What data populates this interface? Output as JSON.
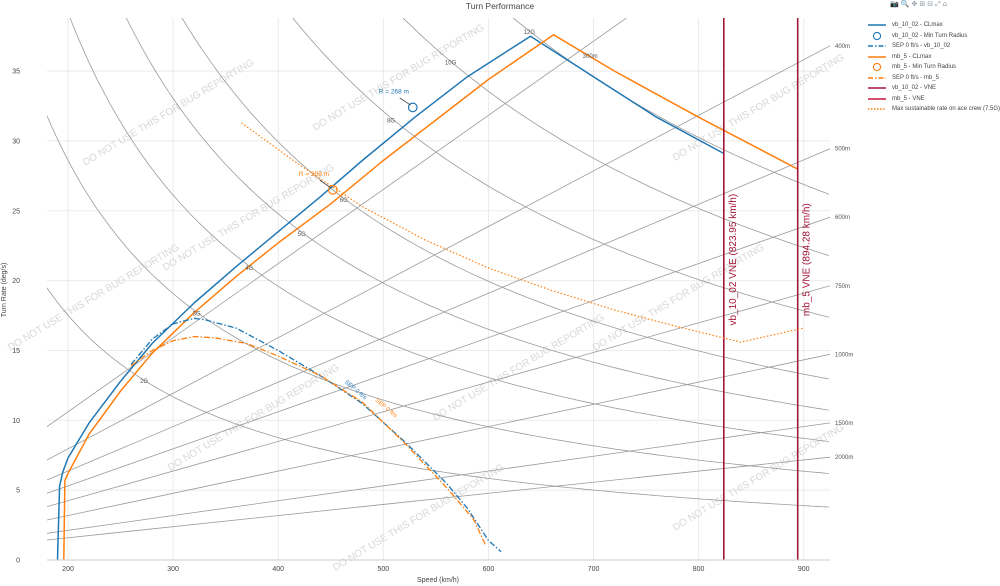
{
  "chart_data": {
    "type": "line",
    "title": "Turn Performance",
    "xlabel": "Speed (km/h)",
    "ylabel": "Turn Rate (deg/s)",
    "xlim": [
      180,
      925
    ],
    "ylim": [
      0,
      38.8
    ],
    "x_ticks": [
      200,
      300,
      400,
      500,
      600,
      700,
      800,
      900
    ],
    "y_ticks": [
      0,
      5,
      10,
      15,
      20,
      25,
      30,
      35
    ],
    "grid": true,
    "legend_position": "right",
    "watermark": "DO NOT USE THIS FOR BUG REPORTING",
    "colors": {
      "vb": "#1f77b4",
      "mb": "#ff7f0e",
      "vne": "#a4163a",
      "aux": "#9a9a9a"
    },
    "g_labels": [
      "2G",
      "3G",
      "4G",
      "5G",
      "6G",
      "8G",
      "10G",
      "12G"
    ],
    "radius_labels": [
      "300m",
      "400m",
      "500m",
      "600m",
      "750m",
      "1000m",
      "1500m",
      "2000m"
    ],
    "series": [
      {
        "name": "vb_10_02 - CLmax",
        "x": [
          190,
          192,
          195,
          200,
          220,
          250,
          280,
          320,
          360,
          400,
          440,
          480,
          530,
          580,
          640,
          700,
          760,
          824
        ],
        "y": [
          0,
          5.3,
          6.3,
          7.3,
          9.8,
          12.8,
          15.5,
          18.4,
          21.0,
          23.5,
          26.0,
          28.6,
          31.7,
          34.6,
          37.5,
          34.6,
          31.7,
          29.1
        ]
      },
      {
        "name": "mb_5 - CLmax",
        "x": [
          196,
          197,
          200,
          220,
          250,
          280,
          320,
          360,
          400,
          450,
          500,
          550,
          600,
          662,
          720,
          800,
          894
        ],
        "y": [
          0,
          5.7,
          6.2,
          9.0,
          12.1,
          14.8,
          17.7,
          20.3,
          22.7,
          25.5,
          28.6,
          31.5,
          34.4,
          37.6,
          35.0,
          31.7,
          28.0
        ]
      },
      {
        "name": "vb_10_02 - Min Turn Radius",
        "x": [
          528
        ],
        "y": [
          32.4
        ]
      },
      {
        "name": "mb_5 - Min Turn Radius",
        "x": [
          452
        ],
        "y": [
          26.5
        ]
      },
      {
        "name": "SEP 0 ft/s - vb_10_02",
        "x": [
          260,
          280,
          300,
          320,
          330,
          360,
          400,
          440,
          480,
          520,
          560,
          580,
          600,
          612
        ],
        "y": [
          14.0,
          15.8,
          16.9,
          17.3,
          17.2,
          16.6,
          15.0,
          13.2,
          11.2,
          8.5,
          5.5,
          3.7,
          1.4,
          0.6
        ]
      },
      {
        "name": "SEP 0 ft/s - mb_5",
        "x": [
          260,
          280,
          300,
          320,
          340,
          370,
          400,
          440,
          480,
          520,
          560,
          586,
          597
        ],
        "y": [
          13.9,
          15.0,
          15.7,
          16.0,
          15.9,
          15.5,
          14.6,
          13.2,
          11.3,
          8.4,
          5.2,
          2.9,
          1.1
        ]
      },
      {
        "name": "vb_10_02 - VNE",
        "x": [
          823.95,
          823.95
        ],
        "y": [
          0,
          38.8
        ]
      },
      {
        "name": "mb_5 - VNE",
        "x": [
          894.28,
          894.28
        ],
        "y": [
          0,
          38.8
        ]
      },
      {
        "name": "Max sustainable rate on ace crew (7.5G)",
        "x": [
          365,
          420,
          480,
          540,
          600,
          660,
          720,
          780,
          840,
          900
        ],
        "y": [
          31.3,
          28.3,
          25.3,
          22.9,
          20.9,
          19.3,
          17.9,
          16.7,
          15.6,
          16.6
        ]
      }
    ],
    "annotations": [
      {
        "text": "R = 268 m",
        "x": 528,
        "y": 32.4,
        "series": "vb_10_02 - Min Turn Radius"
      },
      {
        "text": "R = 259 m",
        "x": 452,
        "y": 26.5,
        "series": "mb_5 - Min Turn Radius"
      },
      {
        "text": "SEP 0 ft/s",
        "series": "SEP 0 ft/s - vb_10_02"
      },
      {
        "text": "SEP 0 ft/s",
        "series": "SEP 0 ft/s - mb_5"
      },
      {
        "text": "vb_10_02 VNE (823.95 km/h)",
        "series": "vb_10_02 - VNE"
      },
      {
        "text": "mb_5 VNE (894.28 km/h)",
        "series": "mb_5 - VNE"
      }
    ]
  },
  "legend": [
    {
      "label": "vb_10_02 - CLmax",
      "color": "#1f77b4",
      "kind": "line"
    },
    {
      "label": "vb_10_02 - Min Turn Radius",
      "color": "#1f77b4",
      "kind": "circle"
    },
    {
      "label": "SEP 0 ft/s - vb_10_02",
      "color": "#1f77b4",
      "kind": "dashdot"
    },
    {
      "label": "mb_5 - CLmax",
      "color": "#ff7f0e",
      "kind": "line"
    },
    {
      "label": "mb_5 - Min Turn Radius",
      "color": "#ff7f0e",
      "kind": "circle"
    },
    {
      "label": "SEP 0 ft/s - mb_5",
      "color": "#ff7f0e",
      "kind": "dashdot"
    },
    {
      "label": "vb_10_02 - VNE",
      "color": "#a4163a",
      "kind": "line"
    },
    {
      "label": "mb_5 - VNE",
      "color": "#c0173e",
      "kind": "line"
    },
    {
      "label": "Max sustainable rate on ace crew (7.5G)",
      "color": "#ff7f0e",
      "kind": "dot"
    }
  ],
  "toolbar": [
    "camera-icon",
    "zoom-icon",
    "pan-icon",
    "zoom-in-icon",
    "zoom-out-icon",
    "autoscale-icon",
    "reset-axes-icon"
  ]
}
